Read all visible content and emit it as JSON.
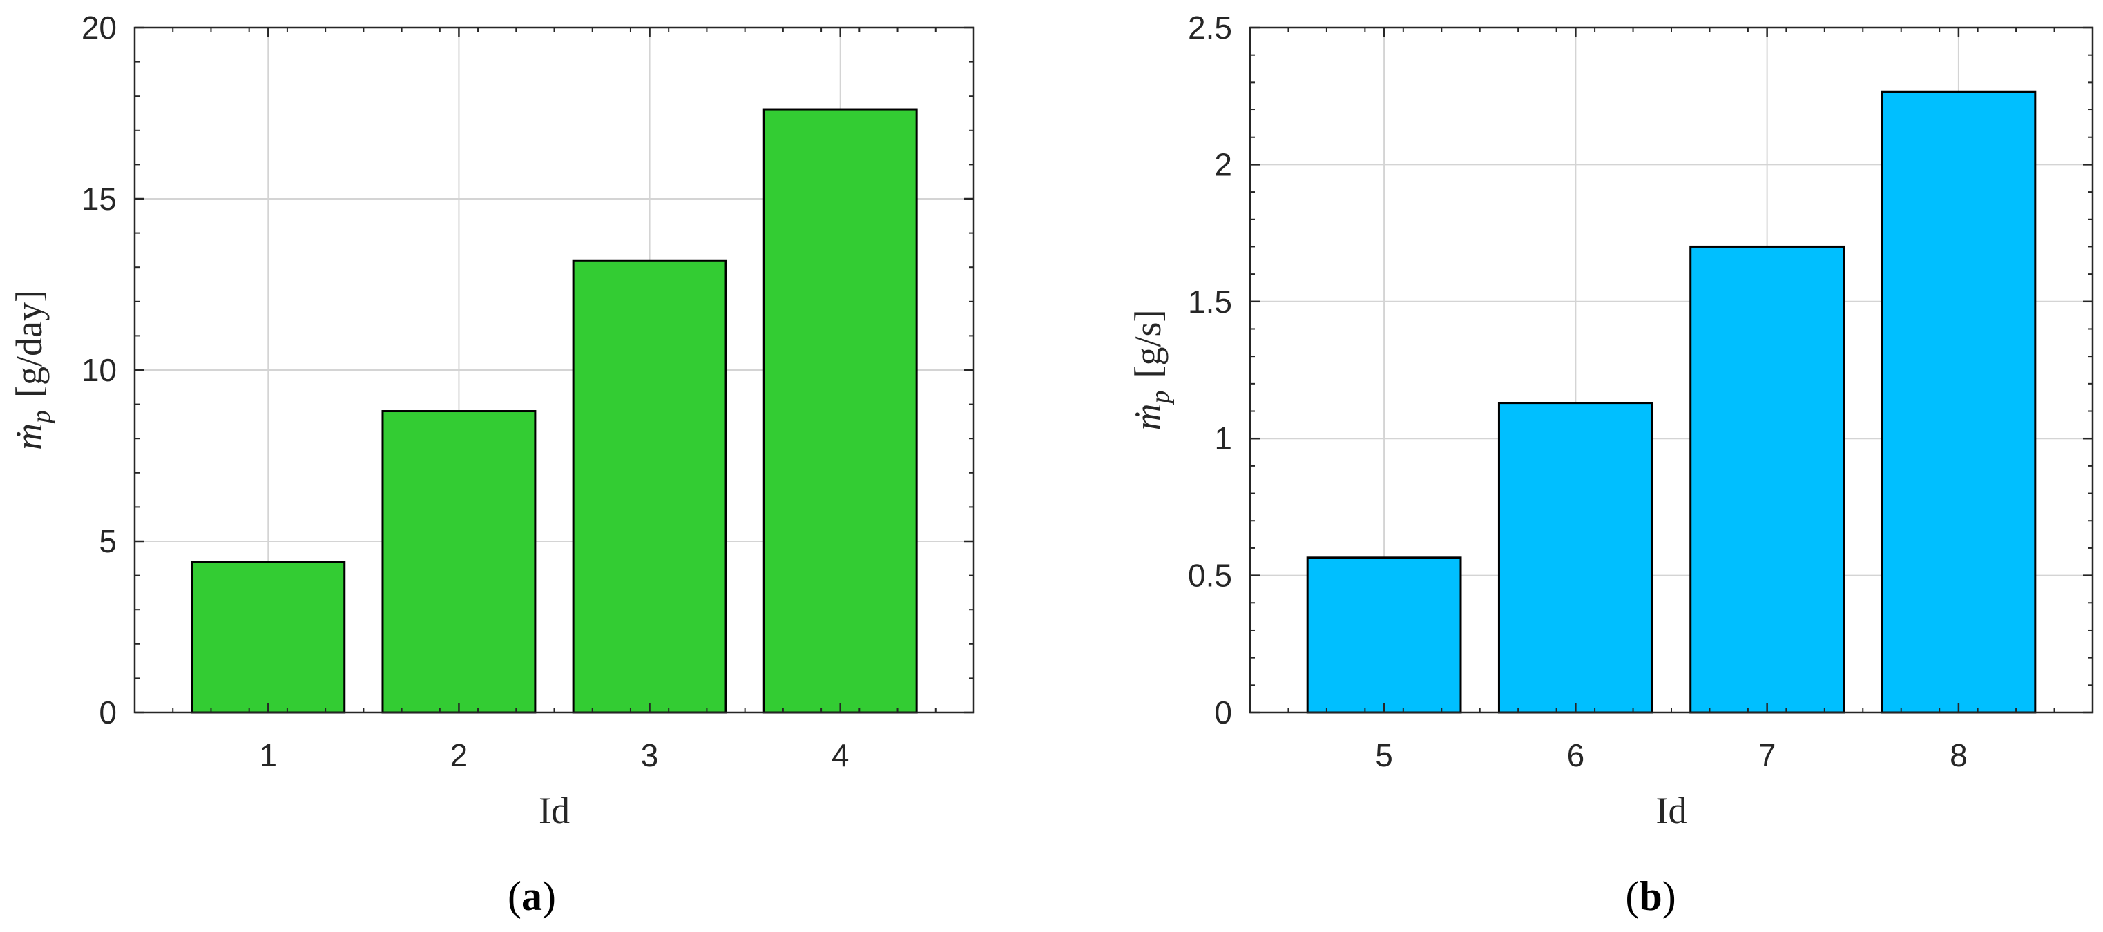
{
  "chart_data": [
    {
      "type": "bar",
      "panel": "a",
      "categories": [
        "1",
        "2",
        "3",
        "4"
      ],
      "values": [
        4.4,
        8.8,
        13.2,
        17.6
      ],
      "xlabel": "Id",
      "ylabel": "ṁp [g/day]",
      "ylabel_symbol": "ṁ",
      "ylabel_subscript": "p",
      "ylabel_unit": "[g/day]",
      "ylim": [
        0,
        20
      ],
      "yticks": [
        "0",
        "5",
        "10",
        "15",
        "20"
      ],
      "ytick_values": [
        0,
        5,
        10,
        15,
        20
      ],
      "grid": true,
      "bar_color": "#33cc33",
      "caption": "(a)",
      "caption_letter": "a"
    },
    {
      "type": "bar",
      "panel": "b",
      "categories": [
        "5",
        "6",
        "7",
        "8"
      ],
      "values": [
        0.565,
        1.13,
        1.7,
        2.265
      ],
      "xlabel": "Id",
      "ylabel": "ṁp [g/s]",
      "ylabel_symbol": "ṁ",
      "ylabel_subscript": "p",
      "ylabel_unit": "[g/s]",
      "ylim": [
        0,
        2.5
      ],
      "yticks": [
        "0",
        "0.5",
        "1",
        "1.5",
        "2",
        "2.5"
      ],
      "ytick_values": [
        0,
        0.5,
        1,
        1.5,
        2,
        2.5
      ],
      "grid": true,
      "bar_color": "#00bfff",
      "caption": "(b)",
      "caption_letter": "b"
    }
  ]
}
